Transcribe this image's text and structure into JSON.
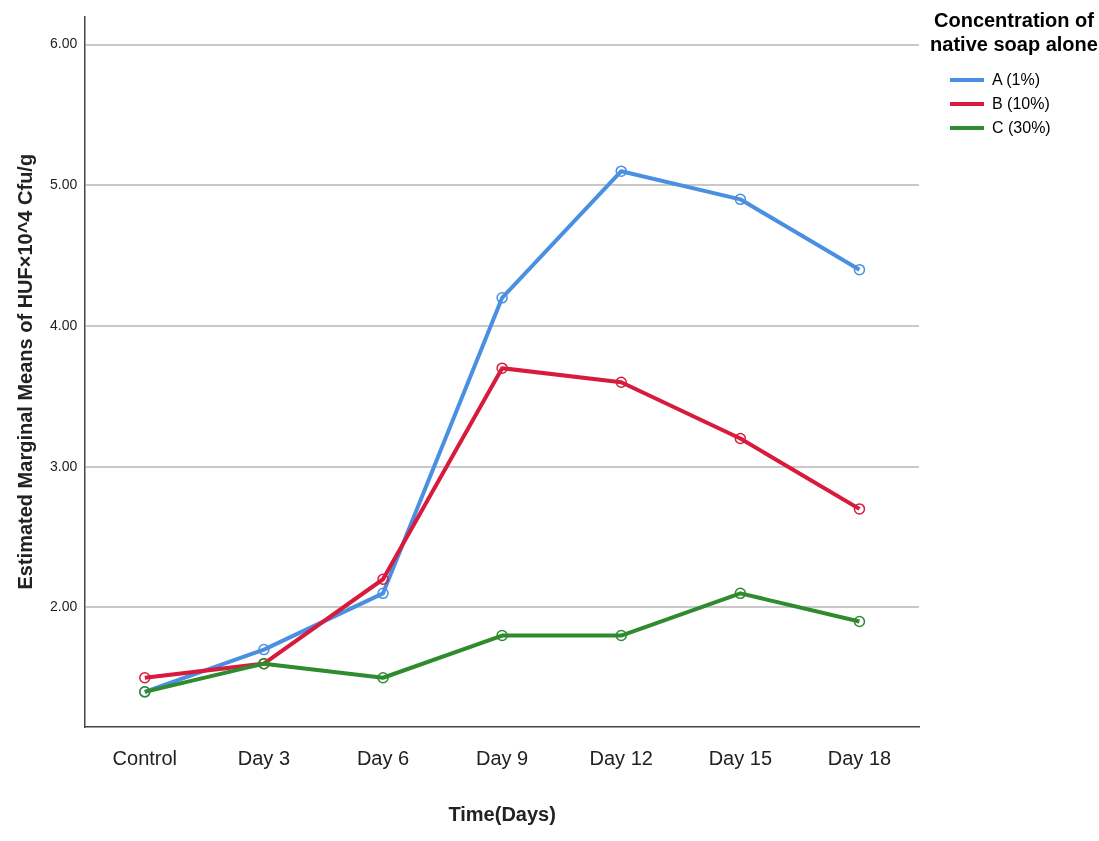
{
  "chart_data": {
    "type": "line",
    "xlabel": "Time(Days)",
    "ylabel": "Estimated Marginal Means of HUF×10^4 Cfu/g",
    "legend_title": "Concentration of native soap alone",
    "legend": "right",
    "grid": "y",
    "marker": "circle",
    "categories": [
      "Control",
      "Day 3",
      "Day 6",
      "Day 9",
      "Day 12",
      "Day 15",
      "Day 18"
    ],
    "ylim": [
      1.15,
      6.2
    ],
    "yticks": [
      {
        "value": 2,
        "label": "2.00"
      },
      {
        "value": 3,
        "label": "3.00"
      },
      {
        "value": 4,
        "label": "4.00"
      },
      {
        "value": 5,
        "label": "5.00"
      },
      {
        "value": 6,
        "label": "6.00"
      }
    ],
    "series": [
      {
        "name": "A (1%)",
        "color": "#4a90e2",
        "values": [
          1.4,
          1.7,
          2.1,
          4.2,
          5.1,
          4.9,
          4.4
        ]
      },
      {
        "name": "B (10%)",
        "color": "#d81b3c",
        "values": [
          1.5,
          1.6,
          2.2,
          3.7,
          3.6,
          3.2,
          2.7
        ]
      },
      {
        "name": "C (30%)",
        "color": "#2e8b2e",
        "values": [
          1.4,
          1.6,
          1.5,
          1.8,
          1.8,
          2.1,
          1.9
        ]
      }
    ]
  }
}
